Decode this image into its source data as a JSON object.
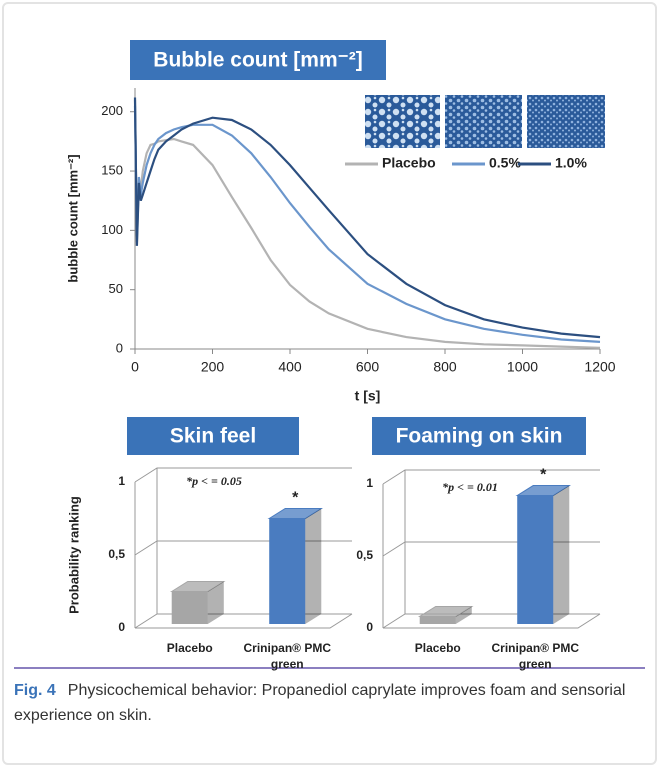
{
  "chart_data": [
    {
      "type": "line",
      "title": "Bubble count [mm⁻²]",
      "x_label": "t [s]",
      "y_label": "bubble count [mm⁻²]",
      "x": [
        0,
        5,
        10,
        15,
        20,
        30,
        40,
        50,
        60,
        80,
        100,
        120,
        150,
        200,
        250,
        300,
        350,
        400,
        450,
        500,
        600,
        700,
        800,
        900,
        1000,
        1100,
        1200
      ],
      "series": [
        {
          "name": "Placebo",
          "color": "#b3b3b3",
          "values": [
            210,
            90,
            140,
            135,
            150,
            165,
            172,
            173,
            175,
            176,
            177,
            175,
            172,
            155,
            128,
            102,
            75,
            54,
            40,
            30,
            17,
            10,
            6,
            4,
            3,
            2,
            1
          ]
        },
        {
          "name": "0.5%",
          "color": "#6b96cc",
          "values": [
            205,
            95,
            145,
            130,
            140,
            155,
            165,
            172,
            177,
            182,
            185,
            187,
            189,
            189,
            180,
            165,
            145,
            123,
            103,
            84,
            55,
            38,
            25,
            17,
            12,
            8,
            6
          ]
        },
        {
          "name": "1.0%",
          "color": "#2c4f80",
          "values": [
            212,
            87,
            140,
            125,
            130,
            140,
            150,
            160,
            168,
            175,
            180,
            185,
            190,
            195,
            193,
            185,
            172,
            155,
            136,
            117,
            80,
            55,
            37,
            25,
            18,
            13,
            10
          ]
        }
      ],
      "xlim": [
        0,
        1200
      ],
      "xticks": [
        0,
        200,
        400,
        600,
        800,
        1000,
        1200
      ],
      "ylim": [
        0,
        220
      ],
      "yticks": [
        0,
        50,
        100,
        150,
        200
      ],
      "grid": false
    },
    {
      "type": "bar3d",
      "title": "Skin feel",
      "y_label": "Probability ranking",
      "annotation": "*p < = 0.05",
      "categories": [
        "Placebo",
        "Crinipan® PMC green"
      ],
      "values": [
        0.25,
        0.75
      ],
      "colors": [
        "#a6a6a6",
        "#4a7cc0"
      ],
      "significance": [
        null,
        "*"
      ],
      "ylim": [
        0,
        1
      ],
      "yticks": [
        {
          "value": 0,
          "label": "0"
        },
        {
          "value": 0.5,
          "label": "0,5"
        },
        {
          "value": 1,
          "label": "1"
        }
      ]
    },
    {
      "type": "bar3d",
      "title": "Foaming on skin",
      "annotation": "*p < = 0.01",
      "categories": [
        "Placebo",
        "Crinipan® PMC green"
      ],
      "values": [
        0.08,
        0.92
      ],
      "colors": [
        "#a6a6a6",
        "#4a7cc0"
      ],
      "significance": [
        null,
        "*"
      ],
      "ylim": [
        0,
        1
      ],
      "yticks": [
        {
          "value": 0,
          "label": "0"
        },
        {
          "value": 0.5,
          "label": "0,5"
        },
        {
          "value": 1,
          "label": "1"
        }
      ]
    }
  ],
  "caption": {
    "label": "Fig. 4",
    "text": "Physicochemical behavior: Propanediol caprylate improves foam and sensorial experience on skin."
  }
}
